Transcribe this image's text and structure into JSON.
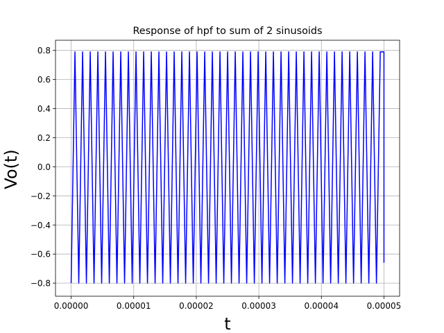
{
  "chart_data": {
    "type": "line",
    "title": "Response of hpf to sum of 2 sinusoids",
    "xlabel": "t",
    "ylabel": "Vo(t)",
    "xlim": [
      -2.5e-06,
      5.25e-05
    ],
    "ylim": [
      -0.89,
      0.87
    ],
    "grid": true,
    "xticks": [
      0,
      1e-05,
      2e-05,
      3e-05,
      4e-05,
      5e-05
    ],
    "xtick_labels": [
      "0.00000",
      "0.00001",
      "0.00002",
      "0.00003",
      "0.00004",
      "0.00005"
    ],
    "yticks": [
      -0.8,
      -0.6,
      -0.4,
      -0.2,
      0.0,
      0.2,
      0.4,
      0.6,
      0.8
    ],
    "ytick_labels": [
      "−0.8",
      "−0.6",
      "−0.4",
      "−0.2",
      "0.0",
      "0.2",
      "0.4",
      "0.6",
      "0.8"
    ],
    "series": [
      {
        "color": "#0000ff",
        "waveform": "triangle-like oscillation",
        "t_start": 0,
        "t_end": 5e-05,
        "period": 1.22e-06,
        "amplitude_max": 0.79,
        "amplitude_min": -0.8,
        "start_value": -0.8,
        "end_value": -0.66
      }
    ]
  }
}
